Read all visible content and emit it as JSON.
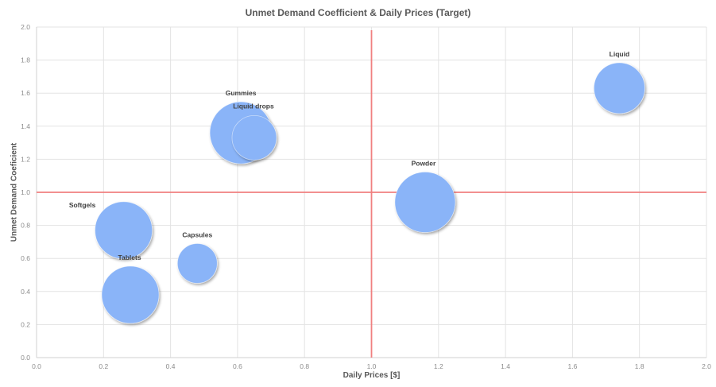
{
  "chart_data": {
    "type": "scatter",
    "subtype": "bubble",
    "title": "Unmet Demand Coefficient & Daily Prices (Target)",
    "xlabel": "Daily Prices [$]",
    "ylabel": "Unmet Demand Coeficient",
    "xlim": [
      0.0,
      2.0
    ],
    "ylim": [
      0.0,
      2.0
    ],
    "x_ticks": [
      "0.0",
      "0.2",
      "0.4",
      "0.6",
      "0.8",
      "1.0",
      "1.2",
      "1.4",
      "1.6",
      "1.8",
      "2.0"
    ],
    "y_ticks": [
      "0.0",
      "0.2",
      "0.4",
      "0.6",
      "0.8",
      "1.0",
      "1.2",
      "1.4",
      "1.6",
      "1.8",
      "2.0"
    ],
    "grid": true,
    "legend": "none",
    "reference_lines": [
      {
        "axis": "x",
        "value": 1.0,
        "color": "#f08080"
      },
      {
        "axis": "y",
        "value": 1.0,
        "color": "#f08080"
      }
    ],
    "bubble_color": "#8ab4f8",
    "series": [
      {
        "name": "Liquid",
        "x": 1.74,
        "y": 1.63,
        "r": 32,
        "label_dx": 0,
        "label_dy": -40
      },
      {
        "name": "Gummies",
        "x": 0.61,
        "y": 1.36,
        "r": 39,
        "label_dx": 0,
        "label_dy": -47
      },
      {
        "name": "Liquid drops",
        "x": 0.65,
        "y": 1.33,
        "r": 28,
        "label_dx": -1,
        "label_dy": -37
      },
      {
        "name": "Powder",
        "x": 1.16,
        "y": 0.94,
        "r": 38,
        "label_dx": -2,
        "label_dy": -46
      },
      {
        "name": "Softgels",
        "x": 0.26,
        "y": 0.77,
        "r": 36,
        "label_dx": -52,
        "label_dy": -29
      },
      {
        "name": "Capsules",
        "x": 0.48,
        "y": 0.57,
        "r": 25,
        "label_dx": 0,
        "label_dy": -33
      },
      {
        "name": "Tablets",
        "x": 0.28,
        "y": 0.38,
        "r": 36,
        "label_dx": -1,
        "label_dy": -44
      }
    ]
  }
}
